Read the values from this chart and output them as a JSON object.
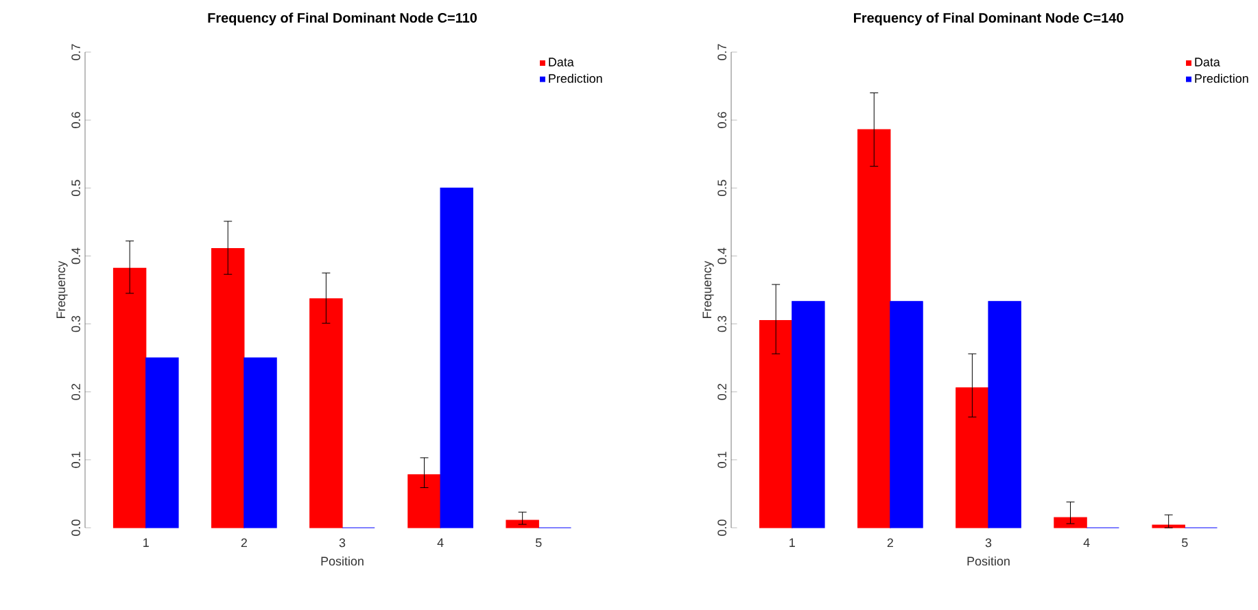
{
  "chart_data": [
    {
      "type": "bar",
      "title": "Frequency of Final Dominant Node C=110",
      "xlabel": "Position",
      "ylabel": "Frequency",
      "categories": [
        "1",
        "2",
        "3",
        "4",
        "5"
      ],
      "series": [
        {
          "name": "Data",
          "color": "#ff0000",
          "values": [
            0.382,
            0.411,
            0.337,
            0.078,
            0.011
          ],
          "errors": [
            [
              0.345,
              0.422
            ],
            [
              0.373,
              0.451
            ],
            [
              0.301,
              0.375
            ],
            [
              0.059,
              0.103
            ],
            [
              0.005,
              0.023
            ]
          ]
        },
        {
          "name": "Prediction",
          "color": "#0000ff",
          "values": [
            0.25,
            0.25,
            0,
            0.5,
            0
          ]
        }
      ],
      "ylim": [
        0,
        0.7
      ],
      "yticks": [
        {
          "value": 0,
          "label": "0.0"
        },
        0.1,
        0.2,
        0.3,
        0.4,
        0.5,
        0.6,
        0.7
      ],
      "legend": "top right"
    },
    {
      "type": "bar",
      "title": "Frequency of Final Dominant Node C=140",
      "xlabel": "Position",
      "ylabel": "Frequency",
      "categories": [
        "1",
        "2",
        "3",
        "4",
        "5"
      ],
      "series": [
        {
          "name": "Data",
          "color": "#ff0000",
          "values": [
            0.305,
            0.586,
            0.206,
            0.015,
            0.004
          ],
          "errors": [
            [
              0.256,
              0.358
            ],
            [
              0.532,
              0.64
            ],
            [
              0.163,
              0.256
            ],
            [
              0.006,
              0.038
            ],
            [
              0,
              0.019
            ]
          ]
        },
        {
          "name": "Prediction",
          "color": "#0000ff",
          "values": [
            0.333,
            0.333,
            0.333,
            0,
            0
          ]
        }
      ],
      "ylim": [
        0,
        0.7
      ],
      "yticks": [
        {
          "value": 0,
          "label": "0.0"
        },
        0.1,
        0.2,
        0.3,
        0.4,
        0.5,
        0.6,
        0.7
      ],
      "legend": "top right"
    }
  ]
}
